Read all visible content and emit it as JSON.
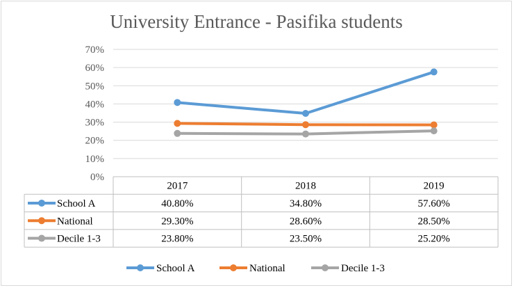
{
  "chart_data": {
    "type": "line",
    "title": "University Entrance - Pasifika students",
    "categories": [
      "2017",
      "2018",
      "2019"
    ],
    "ylim": [
      0,
      70
    ],
    "yticks": [
      "0%",
      "10%",
      "20%",
      "30%",
      "40%",
      "50%",
      "60%",
      "70%"
    ],
    "grid": true,
    "legend_position": "bottom",
    "data_table": true,
    "series": [
      {
        "name": "School A",
        "color": "#5B9BD5",
        "values": [
          40.8,
          34.8,
          57.6
        ],
        "labels": [
          "40.80%",
          "34.80%",
          "57.60%"
        ]
      },
      {
        "name": "National",
        "color": "#ED7D31",
        "values": [
          29.3,
          28.6,
          28.5
        ],
        "labels": [
          "29.30%",
          "28.60%",
          "28.50%"
        ]
      },
      {
        "name": "Decile 1-3",
        "color": "#A5A5A5",
        "values": [
          23.8,
          23.5,
          25.2
        ],
        "labels": [
          "23.80%",
          "23.50%",
          "25.20%"
        ]
      }
    ]
  }
}
